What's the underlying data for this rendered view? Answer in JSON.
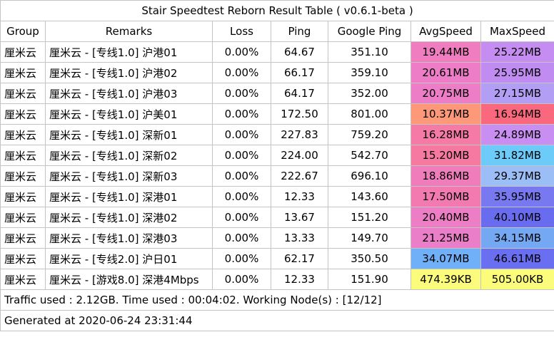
{
  "title": "Stair Speedtest Reborn Result Table ( v0.6.1-beta )",
  "columns": [
    "Group",
    "Remarks",
    "Loss",
    "Ping",
    "Google Ping",
    "AvgSpeed",
    "MaxSpeed"
  ],
  "rows": [
    {
      "group": "厘米云",
      "remarks": "厘米云 - [专线1.0] 沪港01",
      "loss": "0.00%",
      "ping": "64.67",
      "google_ping": "351.10",
      "avg": "19.44MB",
      "max": "25.22MB",
      "avg_color": "#f17dc1",
      "max_color": "#c58cf1"
    },
    {
      "group": "厘米云",
      "remarks": "厘米云 - [专线1.0] 沪港02",
      "loss": "0.00%",
      "ping": "66.17",
      "google_ping": "359.10",
      "avg": "20.61MB",
      "max": "25.95MB",
      "avg_color": "#ec7dc6",
      "max_color": "#c08cf2"
    },
    {
      "group": "厘米云",
      "remarks": "厘米云 - [专线1.0] 沪港03",
      "loss": "0.00%",
      "ping": "64.17",
      "google_ping": "352.00",
      "avg": "20.75MB",
      "max": "27.15MB",
      "avg_color": "#ec7dc6",
      "max_color": "#b39ef5"
    },
    {
      "group": "厘米云",
      "remarks": "厘米云 - [专线1.0] 沪美01",
      "loss": "0.00%",
      "ping": "172.50",
      "google_ping": "801.00",
      "avg": "10.37MB",
      "max": "16.94MB",
      "avg_color": "#fd9879",
      "max_color": "#f9687c"
    },
    {
      "group": "厘米云",
      "remarks": "厘米云 - [专线1.0] 深新01",
      "loss": "0.00%",
      "ping": "227.83",
      "google_ping": "759.20",
      "avg": "16.28MB",
      "max": "24.89MB",
      "avg_color": "#f57aa6",
      "max_color": "#c98ef1"
    },
    {
      "group": "厘米云",
      "remarks": "厘米云 - [专线1.0] 深新02",
      "loss": "0.00%",
      "ping": "224.00",
      "google_ping": "542.70",
      "avg": "15.20MB",
      "max": "31.82MB",
      "avg_color": "#f679a1",
      "max_color": "#6ccbf9"
    },
    {
      "group": "厘米云",
      "remarks": "厘米云 - [专线1.0] 深新03",
      "loss": "0.00%",
      "ping": "222.67",
      "google_ping": "696.10",
      "avg": "18.86MB",
      "max": "29.37MB",
      "avg_color": "#f17cbc",
      "max_color": "#9cbef6"
    },
    {
      "group": "厘米云",
      "remarks": "厘米云 - [专线1.0] 深港01",
      "loss": "0.00%",
      "ping": "12.33",
      "google_ping": "143.60",
      "avg": "17.50MB",
      "max": "35.95MB",
      "avg_color": "#f37ab0",
      "max_color": "#7878f0"
    },
    {
      "group": "厘米云",
      "remarks": "厘米云 - [专线1.0] 深港02",
      "loss": "0.00%",
      "ping": "13.67",
      "google_ping": "151.20",
      "avg": "20.40MB",
      "max": "40.10MB",
      "avg_color": "#ed7dc4",
      "max_color": "#6a6cf0"
    },
    {
      "group": "厘米云",
      "remarks": "厘米云 - [专线1.0] 深港03",
      "loss": "0.00%",
      "ping": "13.33",
      "google_ping": "149.70",
      "avg": "21.25MB",
      "max": "34.15MB",
      "avg_color": "#ea7ec8",
      "max_color": "#74a8f3"
    },
    {
      "group": "厘米云",
      "remarks": "厘米云 - [专线2.0] 沪日01",
      "loss": "0.00%",
      "ping": "62.17",
      "google_ping": "350.50",
      "avg": "34.07MB",
      "max": "46.61MB",
      "avg_color": "#6fb0f8",
      "max_color": "#6a6ef0"
    },
    {
      "group": "厘米云",
      "remarks": "厘米云 - [游戏8.0] 深港4Mbps",
      "loss": "0.00%",
      "ping": "12.33",
      "google_ping": "151.90",
      "avg": "474.39KB",
      "max": "505.00KB",
      "avg_color": "#fbfb7c",
      "max_color": "#fbfb7c"
    }
  ],
  "footer": {
    "traffic": "Traffic used : 2.12GB. Time used : 00:04:02. Working Node(s) : [12/12]",
    "generated": "Generated at 2020-06-24 23:31:44"
  },
  "chart_data": {
    "type": "table",
    "title": "Stair Speedtest Reborn Result Table ( v0.6.1-beta )",
    "columns": [
      "Group",
      "Remarks",
      "Loss",
      "Ping",
      "Google Ping",
      "AvgSpeed",
      "MaxSpeed"
    ],
    "cells": [
      [
        "厘米云",
        "厘米云 - [专线1.0] 沪港01",
        "0.00%",
        "64.67",
        "351.10",
        "19.44MB",
        "25.22MB"
      ],
      [
        "厘米云",
        "厘米云 - [专线1.0] 沪港02",
        "0.00%",
        "66.17",
        "359.10",
        "20.61MB",
        "25.95MB"
      ],
      [
        "厘米云",
        "厘米云 - [专线1.0] 沪港03",
        "0.00%",
        "64.17",
        "352.00",
        "20.75MB",
        "27.15MB"
      ],
      [
        "厘米云",
        "厘米云 - [专线1.0] 沪美01",
        "0.00%",
        "172.50",
        "801.00",
        "10.37MB",
        "16.94MB"
      ],
      [
        "厘米云",
        "厘米云 - [专线1.0] 深新01",
        "0.00%",
        "227.83",
        "759.20",
        "16.28MB",
        "24.89MB"
      ],
      [
        "厘米云",
        "厘米云 - [专线1.0] 深新02",
        "0.00%",
        "224.00",
        "542.70",
        "15.20MB",
        "31.82MB"
      ],
      [
        "厘米云",
        "厘米云 - [专线1.0] 深新03",
        "0.00%",
        "222.67",
        "696.10",
        "18.86MB",
        "29.37MB"
      ],
      [
        "厘米云",
        "厘米云 - [专线1.0] 深港01",
        "0.00%",
        "12.33",
        "143.60",
        "17.50MB",
        "35.95MB"
      ],
      [
        "厘米云",
        "厘米云 - [专线1.0] 深港02",
        "0.00%",
        "13.67",
        "151.20",
        "20.40MB",
        "40.10MB"
      ],
      [
        "厘米云",
        "厘米云 - [专线1.0] 深港03",
        "0.00%",
        "13.33",
        "149.70",
        "21.25MB",
        "34.15MB"
      ],
      [
        "厘米云",
        "厘米云 - [专线2.0] 沪日01",
        "0.00%",
        "62.17",
        "350.50",
        "34.07MB",
        "46.61MB"
      ],
      [
        "厘米云",
        "厘米云 - [游戏8.0] 深港4Mbps",
        "0.00%",
        "12.33",
        "151.90",
        "474.39KB",
        "505.00KB"
      ]
    ]
  }
}
